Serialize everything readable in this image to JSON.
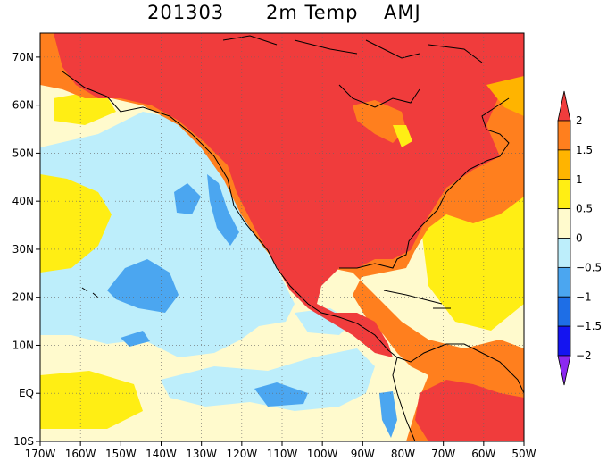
{
  "title": {
    "date": "201303",
    "variable": "2m Temp",
    "season": "AMJ"
  },
  "map": {
    "lon_range": [
      -170,
      -50
    ],
    "lat_range": [
      -10,
      75
    ],
    "grid": "dotted",
    "lon_ticks": [
      {
        "value": -170,
        "label": "170W"
      },
      {
        "value": -160,
        "label": "160W"
      },
      {
        "value": -150,
        "label": "150W"
      },
      {
        "value": -140,
        "label": "140W"
      },
      {
        "value": -130,
        "label": "130W"
      },
      {
        "value": -120,
        "label": "120W"
      },
      {
        "value": -110,
        "label": "110W"
      },
      {
        "value": -100,
        "label": "100W"
      },
      {
        "value": -90,
        "label": "90W"
      },
      {
        "value": -80,
        "label": "80W"
      },
      {
        "value": -70,
        "label": "70W"
      },
      {
        "value": -60,
        "label": "60W"
      },
      {
        "value": -50,
        "label": "50W"
      }
    ],
    "lat_ticks": [
      {
        "value": 70,
        "label": "70N"
      },
      {
        "value": 60,
        "label": "60N"
      },
      {
        "value": 50,
        "label": "50N"
      },
      {
        "value": 40,
        "label": "40N"
      },
      {
        "value": 30,
        "label": "30N"
      },
      {
        "value": 20,
        "label": "20N"
      },
      {
        "value": 10,
        "label": "10N"
      },
      {
        "value": 0,
        "label": "EQ"
      },
      {
        "value": -10,
        "label": "10S"
      }
    ]
  },
  "colorbar": {
    "levels": [
      {
        "label": "2",
        "value": 2
      },
      {
        "label": "1.5",
        "value": 1.5
      },
      {
        "label": "1",
        "value": 1
      },
      {
        "label": "0.5",
        "value": 0.5
      },
      {
        "label": "0",
        "value": 0
      },
      {
        "label": "−0.5",
        "value": -0.5
      },
      {
        "label": "−1",
        "value": -1
      },
      {
        "label": "−1.5",
        "value": -1.5
      },
      {
        "label": "−2",
        "value": -2
      }
    ],
    "colors": {
      "above_2": "#f03c3c",
      "1.5_to_2": "#ff7f1e",
      "1_to_1.5": "#ffb400",
      "0.5_to_1": "#ffee14",
      "0_to_0.5": "#fffacd",
      "-0.5_to_0": "#bdeefb",
      "-1_to_-0.5": "#4ba6f0",
      "-1.5_to_-1": "#1e6ee6",
      "-2_to_-1.5": "#1414f0",
      "below_-2": "#8c28f0"
    }
  }
}
